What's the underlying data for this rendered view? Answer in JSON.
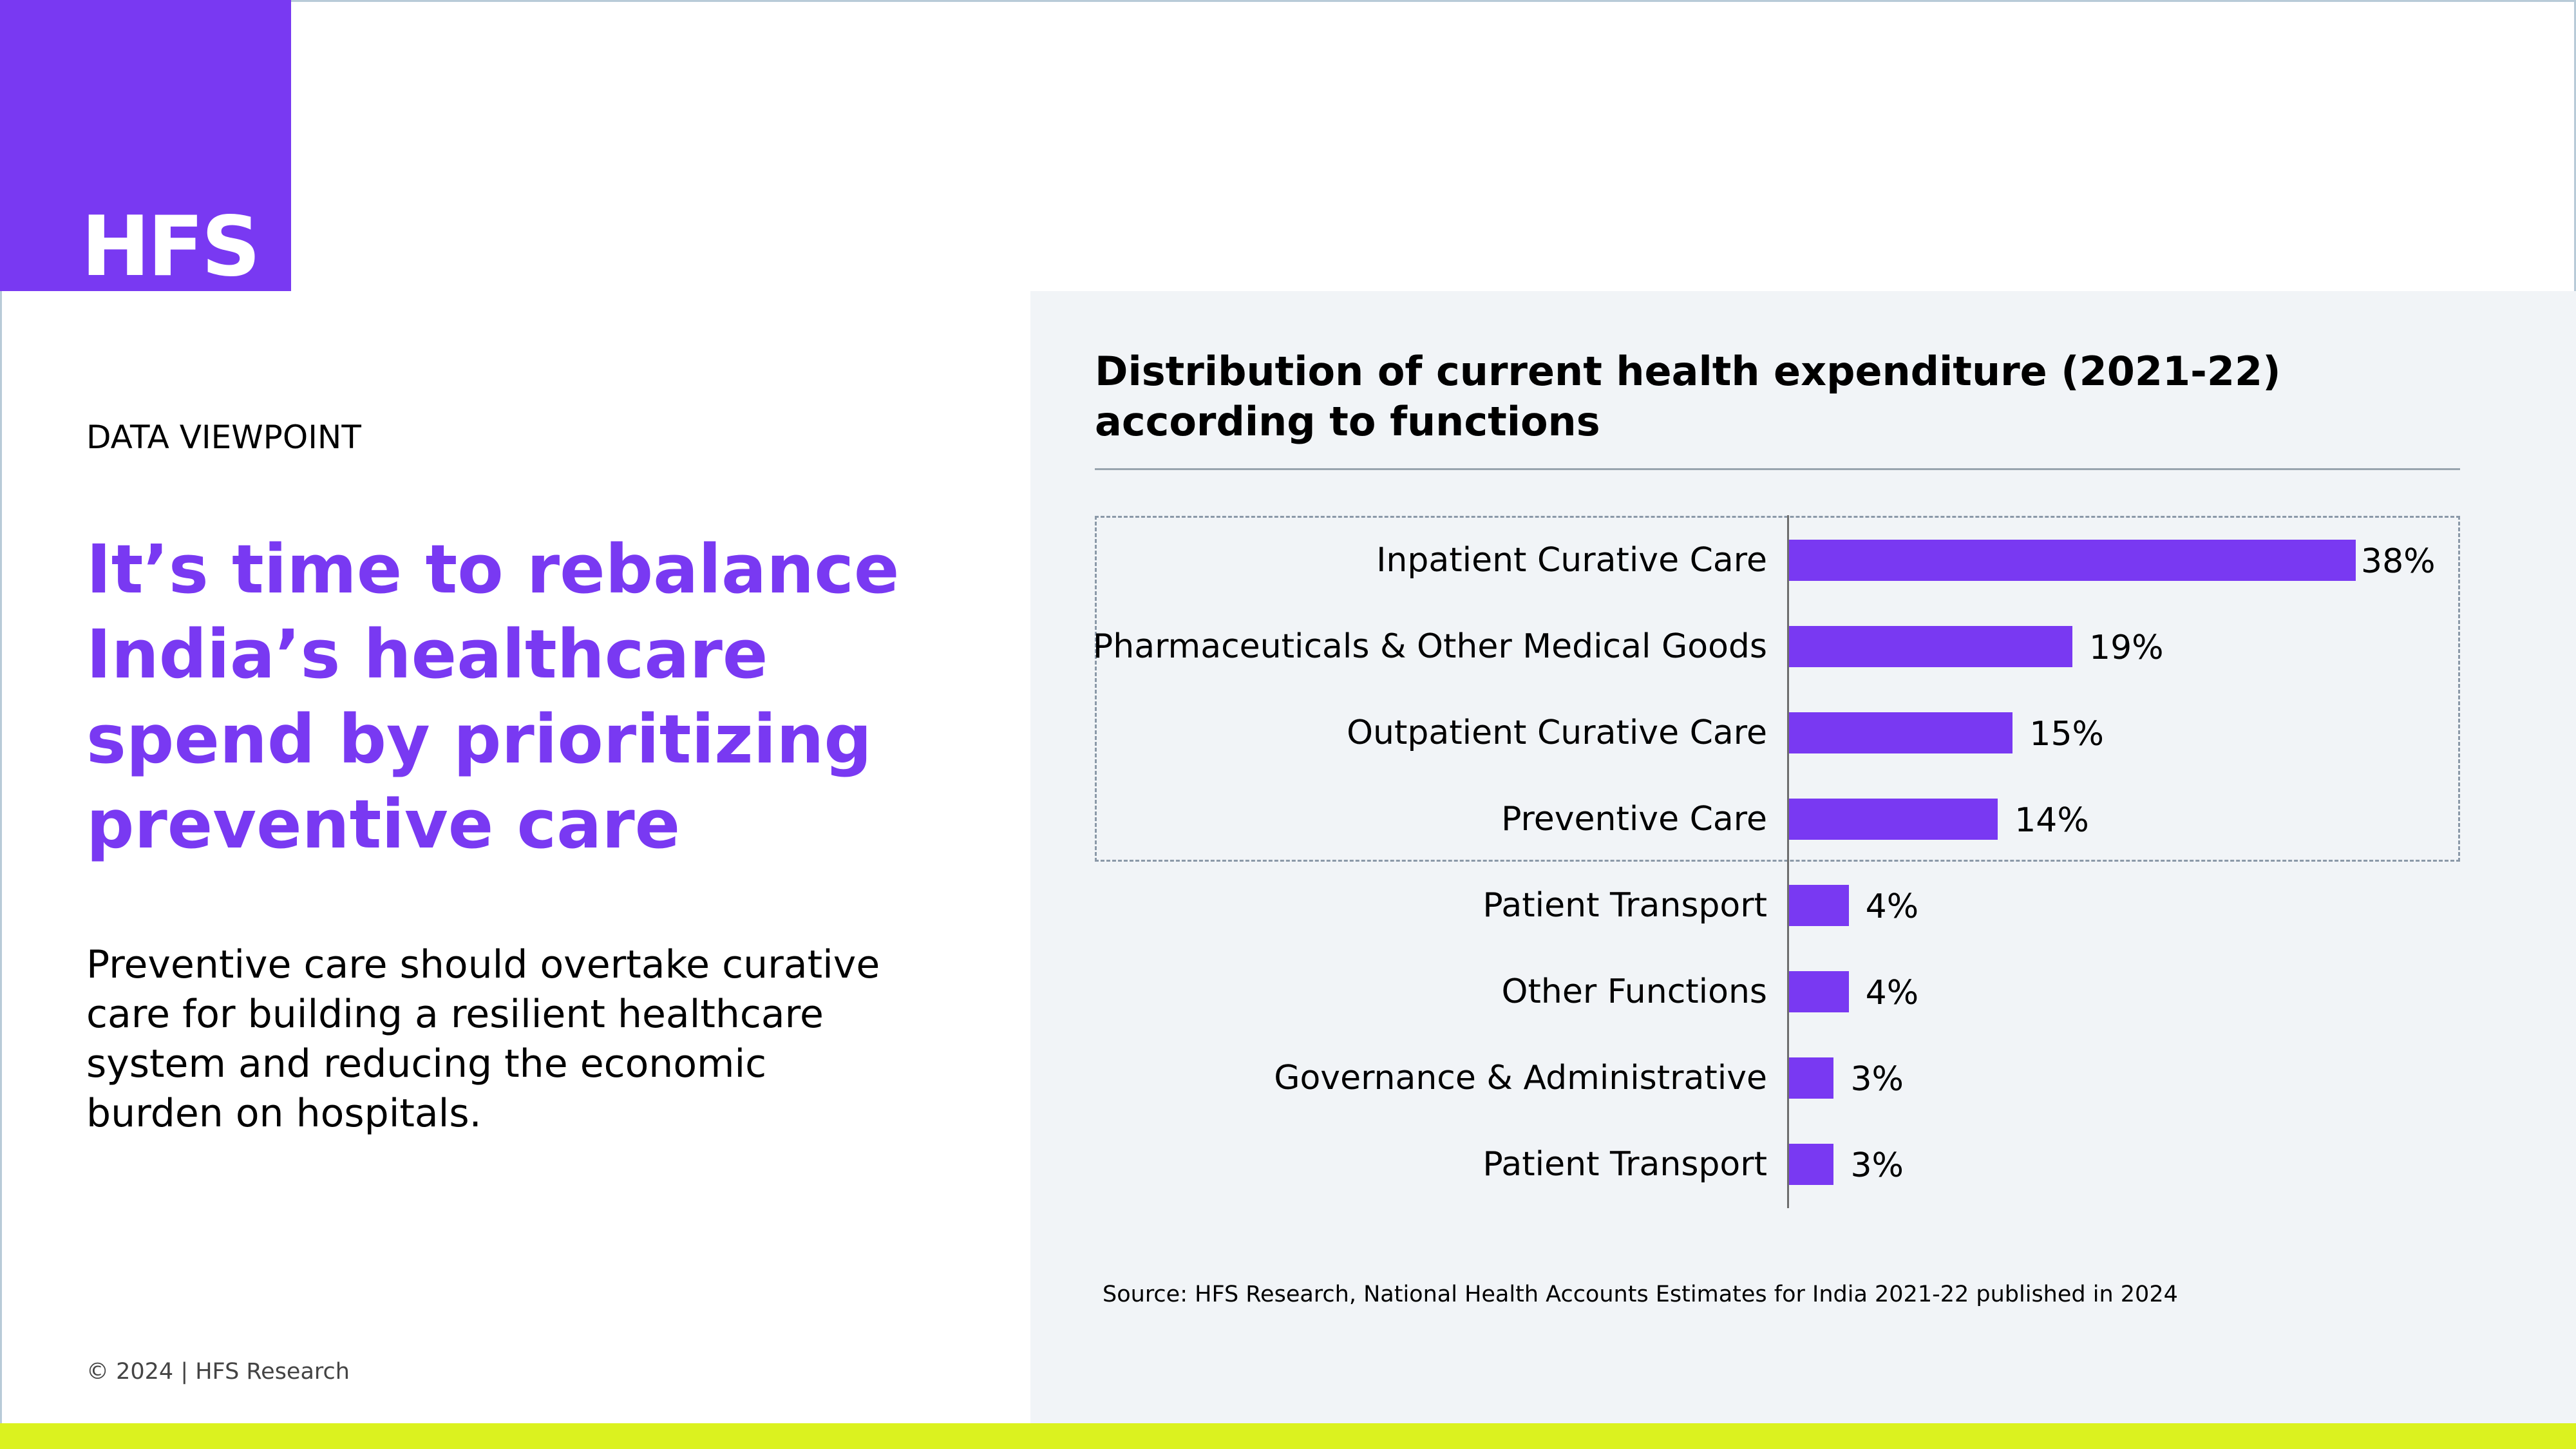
{
  "brand": {
    "logo_text": "HFS",
    "accent_color": "#7939f2",
    "footer_bar_color": "#dbf21f"
  },
  "left": {
    "eyebrow": "DATA VIEWPOINT",
    "headline": "It’s time to rebalance India’s healthcare spend by prioritizing preventive care",
    "body": "Preventive care should overtake curative care for building a resilient healthcare system and reducing the economic burden on hospitals.",
    "copyright": "© 2024 | HFS Research"
  },
  "chart": {
    "source": "Source: HFS Research, National Health Accounts Estimates for India 2021-22 published in 2024"
  },
  "chart_data": {
    "type": "bar",
    "orientation": "horizontal",
    "title": "Distribution of current health expenditure (2021-22) according to functions",
    "categories": [
      "Inpatient Curative Care",
      "Pharmaceuticals & Other Medical Goods",
      "Outpatient Curative Care",
      "Preventive Care",
      "Patient Transport",
      "Other Functions",
      "Governance & Administrative",
      "Patient Transport"
    ],
    "values": [
      38,
      19,
      15,
      14,
      4,
      4,
      3,
      3
    ],
    "value_labels": [
      "38%",
      "19%",
      "15%",
      "14%",
      "4%",
      "4%",
      "3%",
      "3%"
    ],
    "unit": "%",
    "highlighted_categories": [
      0,
      1,
      2,
      3
    ],
    "bar_color": "#7939f2",
    "grid": false,
    "legend": "none"
  }
}
